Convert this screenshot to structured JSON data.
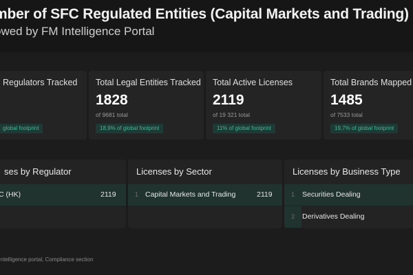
{
  "header": {
    "title": "mber of SFC Regulated Entities (Capital Markets and Trading)",
    "subtitle": "owed by FM Intelligence Portal"
  },
  "stats": [
    {
      "label": "Regulators Tracked",
      "value": "",
      "sub": "",
      "pill": "global footprint"
    },
    {
      "label": "Total Legal Entities Tracked",
      "value": "1828",
      "sub": "of 9681 total",
      "pill": "18,9% of global footprint"
    },
    {
      "label": "Total Active Licenses",
      "value": "2119",
      "sub": "of 19 321 total",
      "pill": "11% of global footprint"
    },
    {
      "label": "Total Brands Mapped",
      "value": "1485",
      "sub": "of 7533 total",
      "pill": "19,7% of global footprint"
    }
  ],
  "panels": {
    "regulator": {
      "title": "ses by Regulator",
      "rows": [
        {
          "index": "",
          "label": "C (HK)",
          "value": "2119",
          "share": 1.0
        }
      ]
    },
    "sector": {
      "title": "Licenses by Sector",
      "rows": [
        {
          "index": "1",
          "label": "Capital Markets and Trading",
          "value": "2119",
          "share": 1.0
        }
      ]
    },
    "business_type": {
      "title": "Licenses by Business Type",
      "rows": [
        {
          "index": "1",
          "label": "Securities Dealing",
          "value": "",
          "share": 1.0
        },
        {
          "index": "2",
          "label": "Derivatives Dealing",
          "value": "",
          "share": 0.13
        }
      ]
    }
  },
  "footer": {
    "source": "I Intelligence portal, Compliance section"
  }
}
